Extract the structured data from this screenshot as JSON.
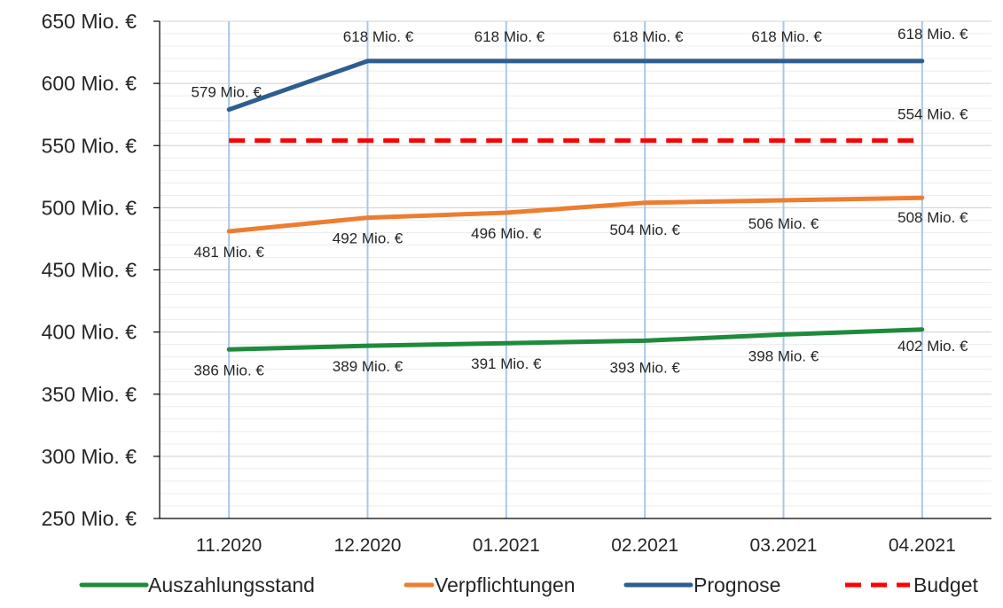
{
  "chart_data": {
    "type": "line",
    "title": "",
    "xlabel": "",
    "ylabel": "",
    "categories": [
      "11.2020",
      "12.2020",
      "01.2021",
      "02.2021",
      "03.2021",
      "04.2021"
    ],
    "ylim": [
      250,
      650
    ],
    "yticks": [
      {
        "value": 250,
        "label": "250 Mio. €"
      },
      {
        "value": 300,
        "label": "300 Mio. €"
      },
      {
        "value": 350,
        "label": "350 Mio. €"
      },
      {
        "value": 400,
        "label": "400 Mio. €"
      },
      {
        "value": 450,
        "label": "450 Mio. €"
      },
      {
        "value": 500,
        "label": "500 Mio. €"
      },
      {
        "value": 550,
        "label": "550 Mio. €"
      },
      {
        "value": 600,
        "label": "600 Mio. €"
      },
      {
        "value": 650,
        "label": "650 Mio. €"
      }
    ],
    "grid": true,
    "legend_position": "bottom",
    "series": [
      {
        "name": "Auszahlungsstand",
        "color": "#1f8a3c",
        "dashed": false,
        "values": [
          386,
          389,
          391,
          393,
          398,
          402
        ],
        "labels": [
          "386 Mio. €",
          "389 Mio. €",
          "391 Mio. €",
          "393 Mio. €",
          "398 Mio. €",
          "402 Mio. €"
        ],
        "label_position": "below"
      },
      {
        "name": "Verpflichtungen",
        "color": "#ed7d31",
        "dashed": false,
        "values": [
          481,
          492,
          496,
          504,
          506,
          508
        ],
        "labels": [
          "481 Mio. €",
          "492 Mio. €",
          "496 Mio. €",
          "504 Mio. €",
          "506 Mio. €",
          "508 Mio. €"
        ],
        "label_position": "below"
      },
      {
        "name": "Prognose",
        "color": "#2e5e8f",
        "dashed": false,
        "values": [
          579,
          618,
          618,
          618,
          618,
          618
        ],
        "labels": [
          "579 Mio. €",
          "618 Mio. €",
          "618 Mio. €",
          "618 Mio. €",
          "618 Mio. €",
          "618 Mio. €"
        ],
        "label_position": "above"
      },
      {
        "name": "Budget",
        "color": "#ff0000",
        "dashed": true,
        "values": [
          554,
          554,
          554,
          554,
          554,
          554
        ],
        "labels": [
          "",
          "",
          "",
          "",
          "",
          "554 Mio. €"
        ],
        "label_position": "above"
      }
    ]
  }
}
